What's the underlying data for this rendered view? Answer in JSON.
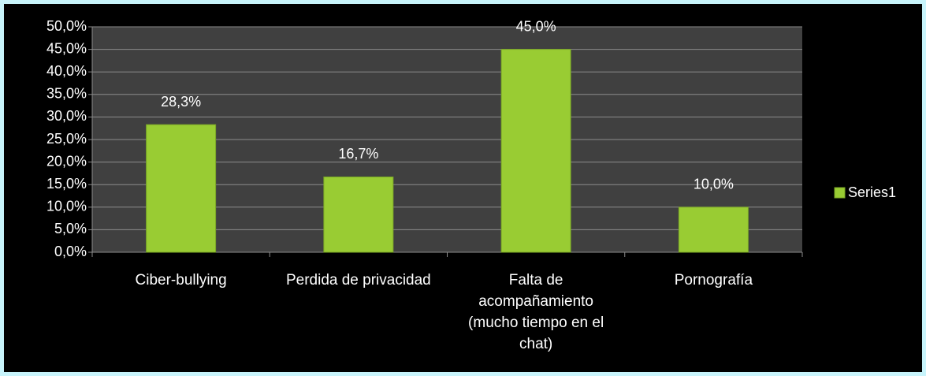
{
  "chart_data": {
    "type": "bar",
    "categories": [
      "Ciber-bullying",
      "Perdida de privacidad",
      "Falta de acompañamiento (mucho tiempo en el chat)",
      "Pornografía"
    ],
    "series": [
      {
        "name": "Series1",
        "color": "#99cc33",
        "values": [
          28.3,
          16.7,
          45.0,
          10.0
        ],
        "value_labels": [
          "28,3%",
          "16,7%",
          "45,0%",
          "10,0%"
        ]
      }
    ],
    "ylim": [
      0,
      50
    ],
    "yticks": [
      {
        "value": 0,
        "label": "0,0%"
      },
      {
        "value": 5,
        "label": "5,0%"
      },
      {
        "value": 10,
        "label": "10,0%"
      },
      {
        "value": 15,
        "label": "15,0%"
      },
      {
        "value": 20,
        "label": "20,0%"
      },
      {
        "value": 25,
        "label": "25,0%"
      },
      {
        "value": 30,
        "label": "30,0%"
      },
      {
        "value": 35,
        "label": "35,0%"
      },
      {
        "value": 40,
        "label": "40,0%"
      },
      {
        "value": 45,
        "label": "45,0%"
      },
      {
        "value": 50,
        "label": "50,0%"
      }
    ],
    "grid": true,
    "legend": "right"
  }
}
